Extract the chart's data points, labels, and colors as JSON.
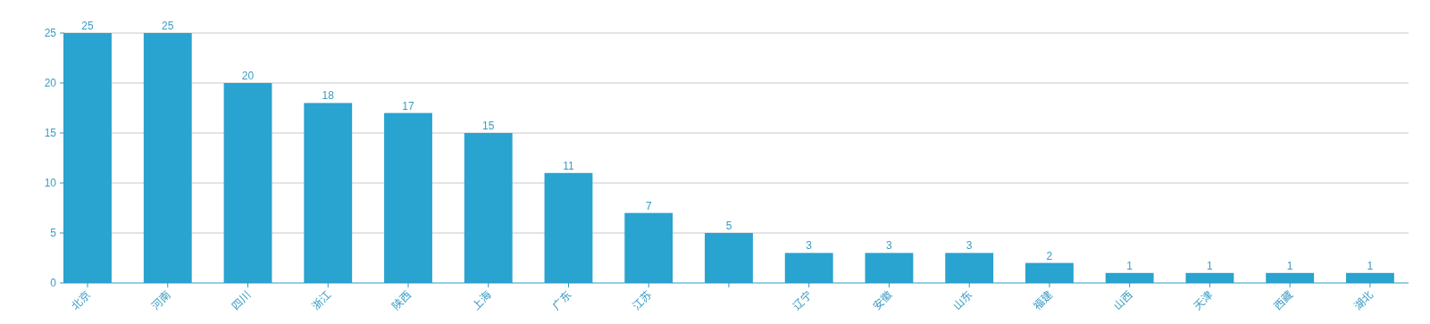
{
  "chart_data": {
    "type": "bar",
    "categories": [
      "北京",
      "河南",
      "四川",
      "浙江",
      "陕西",
      "上海",
      "广东",
      "江苏",
      null,
      "辽宁",
      "安徽",
      "山东",
      "福建",
      "山西",
      "天津",
      "西藏",
      "湖北"
    ],
    "values": [
      25,
      25,
      20,
      18,
      17,
      15,
      11,
      7,
      5,
      3,
      3,
      3,
      2,
      1,
      1,
      1,
      1
    ],
    "color": "#29a3cf",
    "ylim": [
      0,
      25
    ],
    "yticks": [
      0,
      5,
      10,
      15,
      20,
      25
    ],
    "grid": "y",
    "data_labels": true
  }
}
